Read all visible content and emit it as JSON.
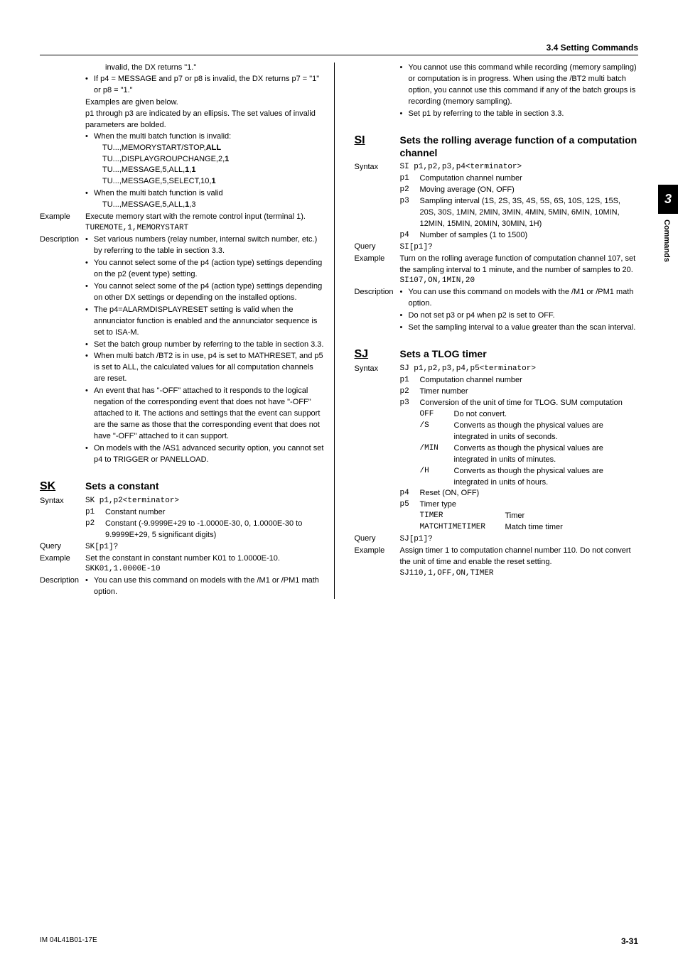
{
  "header": {
    "section": "3.4  Setting Commands"
  },
  "sideTab": {
    "number": "3",
    "label": "Commands"
  },
  "footer": {
    "left": "IM 04L41B01-17E",
    "right": "3-31"
  },
  "left": {
    "pre": {
      "line1": "invalid, the DX returns \"1.\"",
      "bullet1": "If p4 = MESSAGE and p7 or p8 is invalid, the DX returns p7 = \"1\" or p8 = \"1.\"",
      "line2": "Examples are given below.",
      "line3": "p1 through p3 are indicated by an ellipsis. The set values of invalid parameters are bolded.",
      "bullet2_head": "When the multi batch function is invalid:",
      "tu1_a": "TU...,MEMORYSTART/STOP,",
      "tu1_b": "ALL",
      "tu2_a": "TU...,DISPLAYGROUPCHANGE,2,",
      "tu2_b": "1",
      "tu3_a": "TU...,MESSAGE,5,ALL,",
      "tu3_b": "1",
      "tu3_c": ",",
      "tu3_d": "1",
      "tu4_a": "TU...,MESSAGE,5,SELECT,10,",
      "tu4_b": "1",
      "bullet3_head": "When the multi batch function is valid",
      "tu5_a": "TU...,MESSAGE,5,ALL,",
      "tu5_b": "1",
      "tu5_c": ",3"
    },
    "example": {
      "label": "Example",
      "text": "Execute memory start with the remote control input (terminal 1).",
      "code": "TUREMOTE,1,MEMORYSTART"
    },
    "desc": {
      "label": "Description",
      "b1": "Set various numbers (relay number, internal switch number, etc.) by referring to the table in section 3.3.",
      "b2": "You cannot select some of the p4 (action type) settings depending on the p2 (event type) setting.",
      "b3": "You cannot select some of the p4 (action type) settings depending on other DX settings or depending on the installed options.",
      "b4": "The p4=ALARMDISPLAYRESET setting is valid when the annunciator function is enabled and the annunciator sequence is set to ISA-M.",
      "b5": "Set the batch group number by referring to the table in section 3.3.",
      "b6": "When multi batch /BT2 is in use, p4 is set to MATHRESET, and p5 is set to ALL, the calculated values for all computation channels are reset.",
      "b7": "An event that has \"-OFF\" attached to it responds to the logical negation of the corresponding event that does not have \"-OFF\" attached to it. The actions and settings that the event can support are the same as those that the corresponding event that does not have \"-OFF\" attached to it can support.",
      "b8": "On models with the /AS1 advanced security option, you cannot set p4 to TRIGGER or PANELLOAD."
    },
    "sk": {
      "code": "SK",
      "title": "Sets a constant",
      "syntaxLabel": "Syntax",
      "syntax": "SK p1,p2<terminator>",
      "p1": "Constant number",
      "p2": "Constant (-9.9999E+29 to -1.0000E-30, 0, 1.0000E-30 to 9.9999E+29, 5 significant digits)",
      "queryLabel": "Query",
      "query": "SK[p1]?",
      "exampleLabel": "Example",
      "exampleText": "Set the constant in constant number K01 to 1.0000E-10.",
      "exampleCode": "SKK01,1.0000E-10",
      "descLabel": "Description",
      "d1": "You can use this command on models with the /M1 or /PM1 math option."
    }
  },
  "right": {
    "pre": {
      "b1": "You cannot use this command while recording (memory sampling) or computation is in progress. When using the /BT2 multi batch option, you cannot use this command if any of the batch groups is recording (memory sampling).",
      "b2": "Set p1 by referring to the table in section 3.3."
    },
    "si": {
      "code": "SI",
      "title": "Sets the rolling average function of a computation channel",
      "syntaxLabel": "Syntax",
      "syntax": "SI p1,p2,p3,p4<terminator>",
      "p1": "Computation channel number",
      "p2": "Moving average (ON, OFF)",
      "p3": "Sampling interval (1S, 2S, 3S, 4S, 5S, 6S, 10S, 12S, 15S, 20S, 30S, 1MIN, 2MIN, 3MIN, 4MIN, 5MIN, 6MIN, 10MIN, 12MIN, 15MIN, 20MIN, 30MIN, 1H)",
      "p4": "Number of samples (1 to 1500)",
      "queryLabel": "Query",
      "query": "SI[p1]?",
      "exampleLabel": "Example",
      "exampleText": "Turn on the rolling average function of computation channel 107, set the sampling interval to 1 minute, and the number of samples to 20.",
      "exampleCode": "SI107,ON,1MIN,20",
      "descLabel": "Description",
      "d1": "You can use this command on models with the /M1 or /PM1 math option.",
      "d2": "Do not set p3 or p4 when p2 is set to OFF.",
      "d3": "Set the sampling interval to a value greater than the scan interval."
    },
    "sj": {
      "code": "SJ",
      "title": "Sets a TLOG timer",
      "syntaxLabel": "Syntax",
      "syntax": "SJ p1,p2,p3,p4,p5<terminator>",
      "p1": "Computation channel number",
      "p2": "Timer number",
      "p3": "Conversion of the unit of time for TLOG. SUM computation",
      "p3_off": "Do not convert.",
      "p3_s": "Converts as though the physical values are integrated in units of seconds.",
      "p3_min": "Converts as though the physical values are integrated in units of minutes.",
      "p3_h": "Converts as though the physical values are integrated in units of hours.",
      "p4": "Reset (ON, OFF)",
      "p5": "Timer type",
      "p5_timer_k": "TIMER",
      "p5_timer_v": "Timer",
      "p5_match_k": "MATCHTIMETIMER",
      "p5_match_v": "Match time timer",
      "queryLabel": "Query",
      "query": "SJ[p1]?",
      "exampleLabel": "Example",
      "exampleText": "Assign timer 1 to computation channel number 110. Do not convert the unit of time and enable the reset setting.",
      "exampleCode": "SJ110,1,OFF,ON,TIMER"
    }
  }
}
